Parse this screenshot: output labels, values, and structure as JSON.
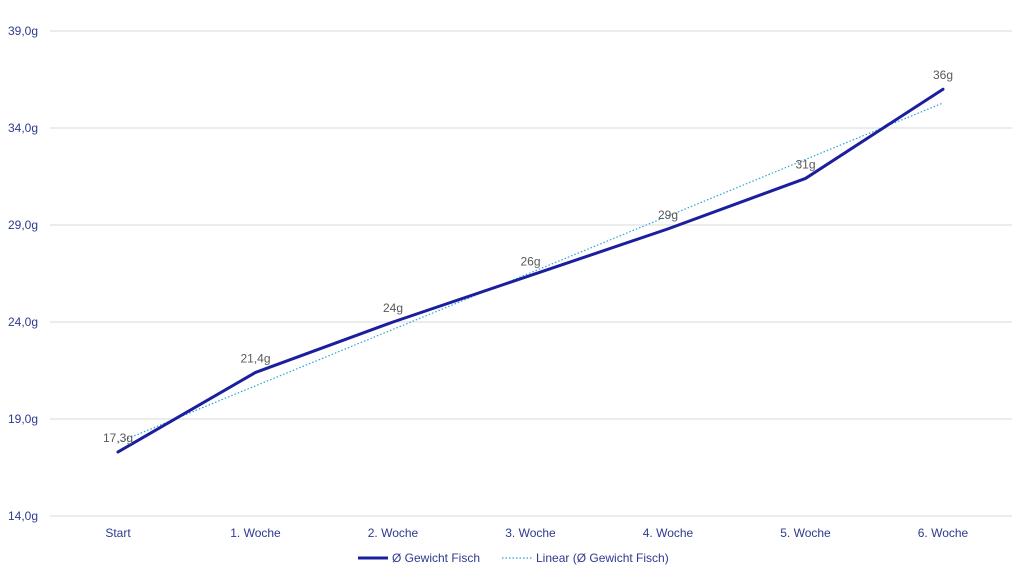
{
  "chart_data": {
    "type": "line",
    "categories": [
      "Start",
      "1. Woche",
      "2. Woche",
      "3. Woche",
      "4. Woche",
      "5. Woche",
      "6. Woche"
    ],
    "ylim": [
      14.0,
      39.0
    ],
    "yticks": [
      14.0,
      19.0,
      24.0,
      29.0,
      34.0,
      39.0
    ],
    "ytick_labels": [
      "14,0g",
      "19,0g",
      "24,0g",
      "29,0g",
      "34,0g",
      "39,0g"
    ],
    "grid": true,
    "legend_position": "bottom",
    "series": [
      {
        "name": "Ø Gewicht Fisch",
        "values": [
          17.3,
          21.4,
          24.0,
          26.4,
          28.8,
          31.4,
          36.0
        ],
        "data_labels": [
          "17,3g",
          "21,4g",
          "24g",
          "26g",
          "29g",
          "31g",
          "36g"
        ],
        "color": "#1b1f9e",
        "style": "solid"
      },
      {
        "name": "Linear (Ø Gewicht Fisch)",
        "values": [
          17.79,
          20.71,
          23.62,
          26.54,
          29.46,
          32.38,
          35.29
        ],
        "color": "#2aa3d6",
        "style": "dotted",
        "trendline": true
      }
    ]
  }
}
